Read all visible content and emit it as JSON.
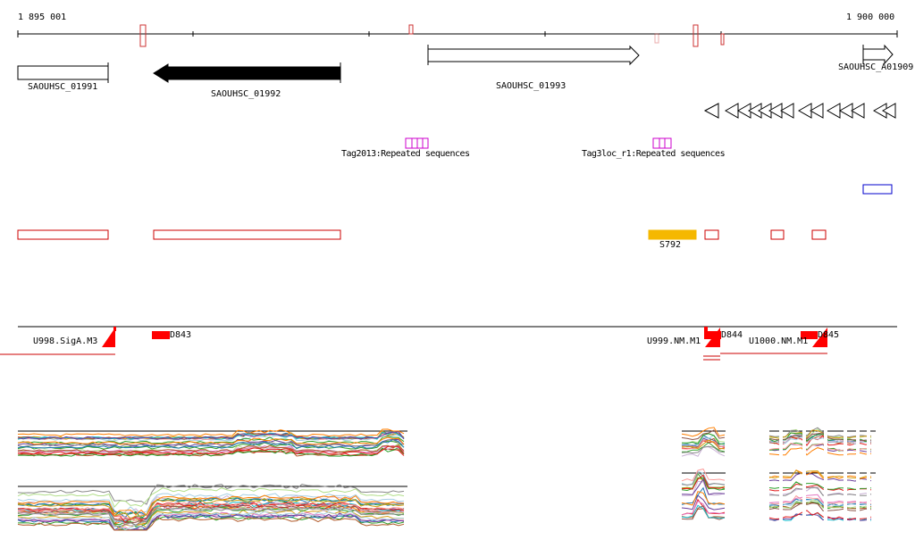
{
  "ruler": {
    "start_label": "1 895 001",
    "end_label": "1 900 000"
  },
  "genes": [
    {
      "id": "g1991",
      "label": "SAOUHSC_01991",
      "strand": "none",
      "fill": "#ffffff"
    },
    {
      "id": "g1992",
      "label": "SAOUHSC_01992",
      "strand": "reverse",
      "fill": "#000000"
    },
    {
      "id": "g1993",
      "label": "SAOUHSC_01993",
      "strand": "forward",
      "fill": "#ffffff"
    },
    {
      "id": "g1909",
      "label": "SAOUHSC_A01909",
      "strand": "forward",
      "fill": "#ffffff"
    }
  ],
  "repeat_labels": {
    "left": "Tag2013:Repeated sequences",
    "right": "Tag3loc_r1:Repeated sequences"
  },
  "features": {
    "s792_label": "S792"
  },
  "transcripts": {
    "u998": "U998.SigA.M3",
    "d843": "D843",
    "u999": "U999.NM.M1",
    "d844": "D844",
    "u1000": "U1000.NM.M1",
    "d845": "D845"
  },
  "colors": {
    "axis": "#000000",
    "repeat": "#cc00cc",
    "feature_outline": "#cc0000",
    "feature_fill": "#ff0000",
    "s792": "#f5b800",
    "blue_box": "#0000cc"
  }
}
